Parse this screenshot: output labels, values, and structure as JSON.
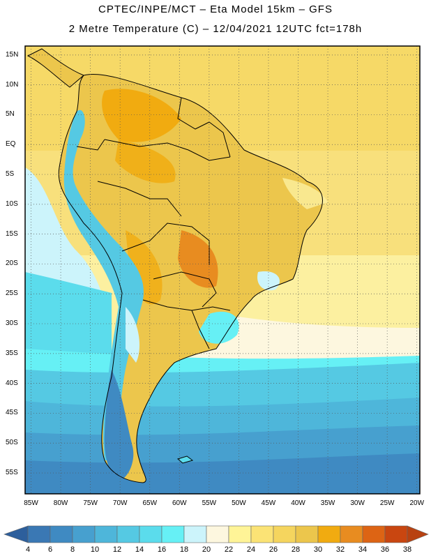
{
  "header": {
    "line1": "CPTEC/INPE/MCT –  Eta Model 15km – GFS",
    "line2": "2 Metre Temperature (C) – 12/04/2021 12UTC fct=178h"
  },
  "map": {
    "lat_labels": [
      "15N",
      "10N",
      "5N",
      "EQ",
      "5S",
      "10S",
      "15S",
      "20S",
      "25S",
      "30S",
      "35S",
      "40S",
      "45S",
      "50S",
      "55S"
    ],
    "lon_labels": [
      "85W",
      "80W",
      "75W",
      "70W",
      "65W",
      "60W",
      "55W",
      "50W",
      "45W",
      "40W",
      "35W",
      "30W",
      "25W",
      "20W"
    ]
  },
  "colorbar": {
    "labels": [
      "4",
      "6",
      "8",
      "10",
      "12",
      "14",
      "16",
      "18",
      "20",
      "22",
      "24",
      "26",
      "28",
      "30",
      "32",
      "34",
      "36",
      "38"
    ],
    "colors": [
      "#3a78b4",
      "#3f8ac2",
      "#47a0cf",
      "#4eb6da",
      "#55c9e3",
      "#5bdcec",
      "#66f0f5",
      "#ccf4fb",
      "#fdf7df",
      "#fff497",
      "#fbe375",
      "#f5d55e",
      "#ecc64c",
      "#f1ab10",
      "#e88c20",
      "#dd6414",
      "#c94610"
    ],
    "left_arrow": "#2d5f9c",
    "right_arrow": "#b84211"
  }
}
